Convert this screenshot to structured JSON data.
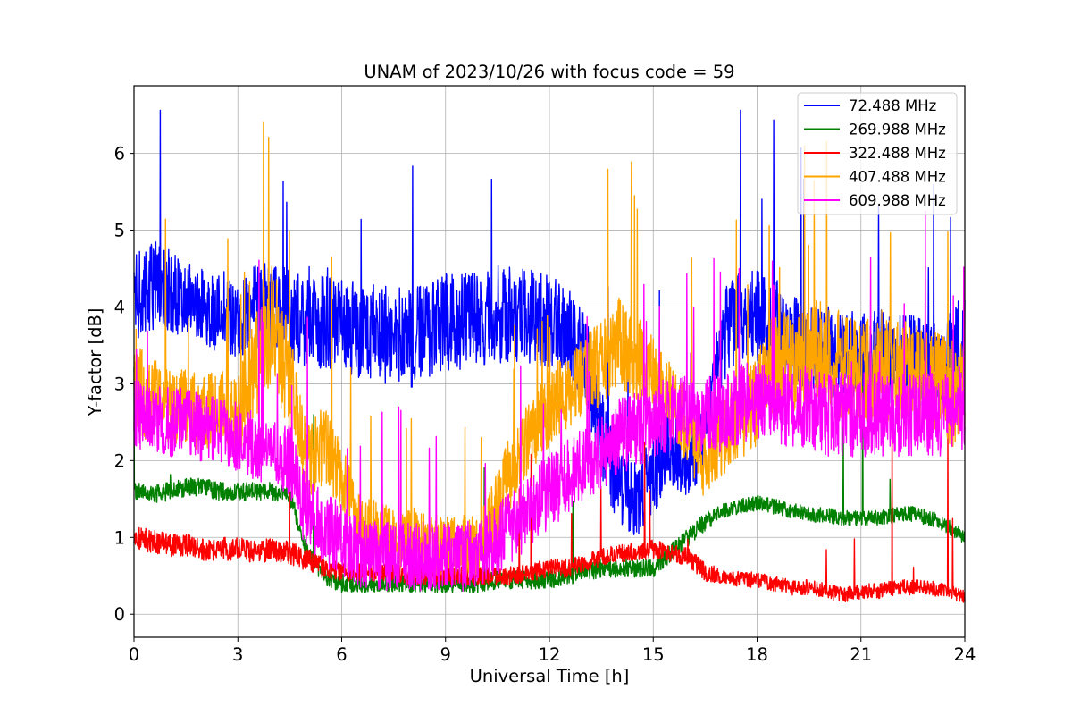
{
  "chart_data": {
    "type": "line",
    "title": "UNAM of 2023/10/26 with focus code = 59",
    "xlabel": "Universal Time [h]",
    "ylabel": "Y-factor [dB]",
    "xlim": [
      0,
      24
    ],
    "ylim": [
      -0.3,
      6.88
    ],
    "xticks": [
      0,
      3,
      6,
      9,
      12,
      15,
      18,
      21,
      24
    ],
    "yticks": [
      0,
      1,
      2,
      3,
      4,
      5,
      6
    ],
    "grid": true,
    "legend_position": "top-right",
    "series": [
      {
        "name": "  72.488 MHz",
        "color": "#0000ff",
        "x": [
          0,
          0.5,
          1,
          1.5,
          2,
          2.5,
          3,
          3.5,
          4,
          4.5,
          5,
          5.5,
          6,
          6.5,
          7,
          7.5,
          8,
          8.5,
          9,
          9.5,
          10,
          10.5,
          11,
          11.5,
          12,
          12.5,
          13,
          13.5,
          14,
          14.5,
          15,
          15.5,
          16,
          16.5,
          17,
          17.5,
          18,
          18.5,
          19,
          19.5,
          20,
          20.5,
          21,
          21.5,
          22,
          22.5,
          23,
          23.5,
          24
        ],
        "center": [
          4.1,
          4.3,
          4.2,
          4.1,
          4.0,
          3.9,
          3.8,
          4.0,
          4.0,
          3.9,
          3.8,
          3.8,
          3.8,
          3.7,
          3.7,
          3.6,
          3.6,
          3.7,
          3.8,
          3.8,
          3.8,
          3.9,
          3.9,
          3.9,
          3.8,
          3.7,
          3.4,
          2.4,
          1.6,
          1.5,
          1.8,
          2.2,
          2.0,
          2.4,
          3.6,
          3.9,
          3.9,
          3.8,
          3.6,
          3.4,
          3.4,
          3.4,
          3.3,
          3.4,
          3.3,
          3.3,
          3.2,
          3.3,
          3.5
        ],
        "spread": [
          0.55,
          0.6,
          0.55,
          0.5,
          0.5,
          0.5,
          0.5,
          0.55,
          0.6,
          0.6,
          0.6,
          0.6,
          0.6,
          0.65,
          0.65,
          0.65,
          0.65,
          0.65,
          0.65,
          0.65,
          0.65,
          0.65,
          0.65,
          0.65,
          0.6,
          0.6,
          0.6,
          0.6,
          0.5,
          0.5,
          0.5,
          0.5,
          0.5,
          0.5,
          0.6,
          0.6,
          0.6,
          0.6,
          0.6,
          0.6,
          0.6,
          0.6,
          0.6,
          0.6,
          0.6,
          0.6,
          0.6,
          0.6,
          0.7
        ],
        "spike_rate": 0.01
      },
      {
        "name": "269.988 MHz",
        "color": "#008000",
        "x": [
          0,
          0.5,
          1,
          1.5,
          2,
          2.5,
          3,
          3.5,
          4,
          4.5,
          5,
          5.5,
          6,
          6.5,
          7,
          7.5,
          8,
          8.5,
          9,
          9.5,
          10,
          10.5,
          11,
          11.5,
          12,
          12.5,
          13,
          13.5,
          14,
          14.5,
          15,
          15.5,
          16,
          16.5,
          17,
          17.5,
          18,
          18.5,
          19,
          19.5,
          20,
          20.5,
          21,
          21.5,
          22,
          22.5,
          23,
          23.5,
          24
        ],
        "center": [
          1.6,
          1.55,
          1.6,
          1.65,
          1.65,
          1.6,
          1.6,
          1.6,
          1.6,
          1.55,
          0.8,
          0.5,
          0.4,
          0.4,
          0.4,
          0.4,
          0.4,
          0.4,
          0.4,
          0.4,
          0.4,
          0.45,
          0.45,
          0.45,
          0.45,
          0.5,
          0.55,
          0.6,
          0.6,
          0.6,
          0.6,
          0.8,
          1.0,
          1.2,
          1.35,
          1.4,
          1.45,
          1.4,
          1.35,
          1.3,
          1.3,
          1.25,
          1.25,
          1.25,
          1.3,
          1.3,
          1.25,
          1.15,
          1.0
        ],
        "spread": [
          0.12,
          0.12,
          0.12,
          0.12,
          0.12,
          0.12,
          0.12,
          0.12,
          0.12,
          0.12,
          0.12,
          0.12,
          0.12,
          0.12,
          0.12,
          0.12,
          0.12,
          0.12,
          0.12,
          0.12,
          0.12,
          0.12,
          0.12,
          0.12,
          0.12,
          0.12,
          0.12,
          0.12,
          0.12,
          0.12,
          0.12,
          0.12,
          0.12,
          0.12,
          0.1,
          0.1,
          0.1,
          0.1,
          0.1,
          0.1,
          0.1,
          0.1,
          0.1,
          0.1,
          0.1,
          0.1,
          0.1,
          0.1,
          0.1
        ],
        "spike_rate": 0.004
      },
      {
        "name": "322.488 MHz",
        "color": "#ff0000",
        "x": [
          0,
          0.5,
          1,
          1.5,
          2,
          2.5,
          3,
          3.5,
          4,
          4.5,
          5,
          5.5,
          6,
          6.5,
          7,
          7.5,
          8,
          8.5,
          9,
          9.5,
          10,
          10.5,
          11,
          11.5,
          12,
          12.5,
          13,
          13.5,
          14,
          14.5,
          15,
          15.5,
          16,
          16.5,
          17,
          17.5,
          18,
          18.5,
          19,
          19.5,
          20,
          20.5,
          21,
          21.5,
          22,
          22.5,
          23,
          23.5,
          24
        ],
        "center": [
          1.0,
          0.95,
          0.9,
          0.9,
          0.85,
          0.85,
          0.85,
          0.8,
          0.85,
          0.8,
          0.7,
          0.6,
          0.55,
          0.55,
          0.55,
          0.55,
          0.5,
          0.5,
          0.5,
          0.5,
          0.5,
          0.5,
          0.5,
          0.55,
          0.6,
          0.6,
          0.65,
          0.75,
          0.8,
          0.8,
          0.85,
          0.8,
          0.75,
          0.55,
          0.5,
          0.45,
          0.45,
          0.4,
          0.35,
          0.35,
          0.3,
          0.25,
          0.3,
          0.3,
          0.35,
          0.35,
          0.35,
          0.3,
          0.25
        ],
        "spread": [
          0.15,
          0.15,
          0.15,
          0.15,
          0.15,
          0.15,
          0.15,
          0.15,
          0.15,
          0.15,
          0.15,
          0.15,
          0.12,
          0.12,
          0.12,
          0.12,
          0.12,
          0.12,
          0.12,
          0.12,
          0.12,
          0.12,
          0.12,
          0.12,
          0.12,
          0.12,
          0.12,
          0.12,
          0.12,
          0.12,
          0.12,
          0.12,
          0.12,
          0.12,
          0.1,
          0.1,
          0.1,
          0.1,
          0.1,
          0.1,
          0.1,
          0.1,
          0.1,
          0.1,
          0.1,
          0.1,
          0.1,
          0.1,
          0.1
        ],
        "spike_rate": 0.004
      },
      {
        "name": "407.488 MHz",
        "color": "#ffa500",
        "x": [
          0,
          0.5,
          1,
          1.5,
          2,
          2.5,
          3,
          3.5,
          4,
          4.5,
          5,
          5.5,
          6,
          6.5,
          7,
          7.5,
          8,
          8.5,
          9,
          9.5,
          10,
          10.5,
          11,
          11.5,
          12,
          12.5,
          13,
          13.5,
          14,
          14.5,
          15,
          15.5,
          16,
          16.5,
          17,
          17.5,
          18,
          18.5,
          19,
          19.5,
          20,
          20.5,
          21,
          21.5,
          22,
          22.5,
          23,
          23.5,
          24
        ],
        "center": [
          3.0,
          2.8,
          2.7,
          2.7,
          2.6,
          2.7,
          2.6,
          3.2,
          3.8,
          3.0,
          2.0,
          2.2,
          1.8,
          1.2,
          1.1,
          1.0,
          1.0,
          0.9,
          0.9,
          0.9,
          0.9,
          1.4,
          2.0,
          2.3,
          2.7,
          2.9,
          3.1,
          3.3,
          3.6,
          3.3,
          3.1,
          2.8,
          2.4,
          2.0,
          2.3,
          2.6,
          2.8,
          3.2,
          3.3,
          3.4,
          3.4,
          3.2,
          3.1,
          3.2,
          3.2,
          3.1,
          3.0,
          2.9,
          2.8
        ],
        "spread": [
          0.6,
          0.6,
          0.5,
          0.5,
          0.5,
          0.5,
          0.5,
          0.7,
          0.8,
          0.7,
          0.5,
          0.5,
          0.5,
          0.4,
          0.4,
          0.4,
          0.4,
          0.4,
          0.4,
          0.4,
          0.4,
          0.5,
          0.5,
          0.5,
          0.5,
          0.5,
          0.5,
          0.6,
          0.6,
          0.6,
          0.5,
          0.5,
          0.5,
          0.5,
          0.5,
          0.6,
          0.6,
          0.7,
          0.7,
          0.7,
          0.7,
          0.7,
          0.7,
          0.7,
          0.7,
          0.7,
          0.7,
          0.7,
          0.7
        ],
        "spike_rate": 0.02
      },
      {
        "name": "609.988 MHz",
        "color": "#ff00ff",
        "x": [
          0,
          0.5,
          1,
          1.5,
          2,
          2.5,
          3,
          3.5,
          4,
          4.5,
          5,
          5.5,
          6,
          6.5,
          7,
          7.5,
          8,
          8.5,
          9,
          9.5,
          10,
          10.5,
          11,
          11.5,
          12,
          12.5,
          13,
          13.5,
          14,
          14.5,
          15,
          15.5,
          16,
          16.5,
          17,
          17.5,
          18,
          18.5,
          19,
          19.5,
          20,
          20.5,
          21,
          21.5,
          22,
          22.5,
          23,
          23.5,
          24
        ],
        "center": [
          2.6,
          2.6,
          2.5,
          2.5,
          2.4,
          2.4,
          2.3,
          2.2,
          2.1,
          2.0,
          1.3,
          1.1,
          1.0,
          0.8,
          0.75,
          0.75,
          0.75,
          0.75,
          0.75,
          0.75,
          0.8,
          1.0,
          1.2,
          1.4,
          1.6,
          1.8,
          2.0,
          2.1,
          2.3,
          2.4,
          2.5,
          2.6,
          2.6,
          2.6,
          2.6,
          2.7,
          2.8,
          2.8,
          2.7,
          2.7,
          2.6,
          2.6,
          2.6,
          2.6,
          2.6,
          2.6,
          2.6,
          2.6,
          2.7
        ],
        "spread": [
          0.45,
          0.45,
          0.45,
          0.45,
          0.45,
          0.45,
          0.45,
          0.45,
          0.45,
          0.5,
          0.5,
          0.5,
          0.5,
          0.45,
          0.45,
          0.45,
          0.45,
          0.45,
          0.45,
          0.45,
          0.45,
          0.5,
          0.5,
          0.5,
          0.5,
          0.5,
          0.5,
          0.5,
          0.5,
          0.5,
          0.5,
          0.5,
          0.5,
          0.5,
          0.5,
          0.55,
          0.55,
          0.55,
          0.55,
          0.55,
          0.55,
          0.55,
          0.55,
          0.55,
          0.55,
          0.55,
          0.55,
          0.55,
          0.55
        ],
        "spike_rate": 0.015
      }
    ]
  }
}
